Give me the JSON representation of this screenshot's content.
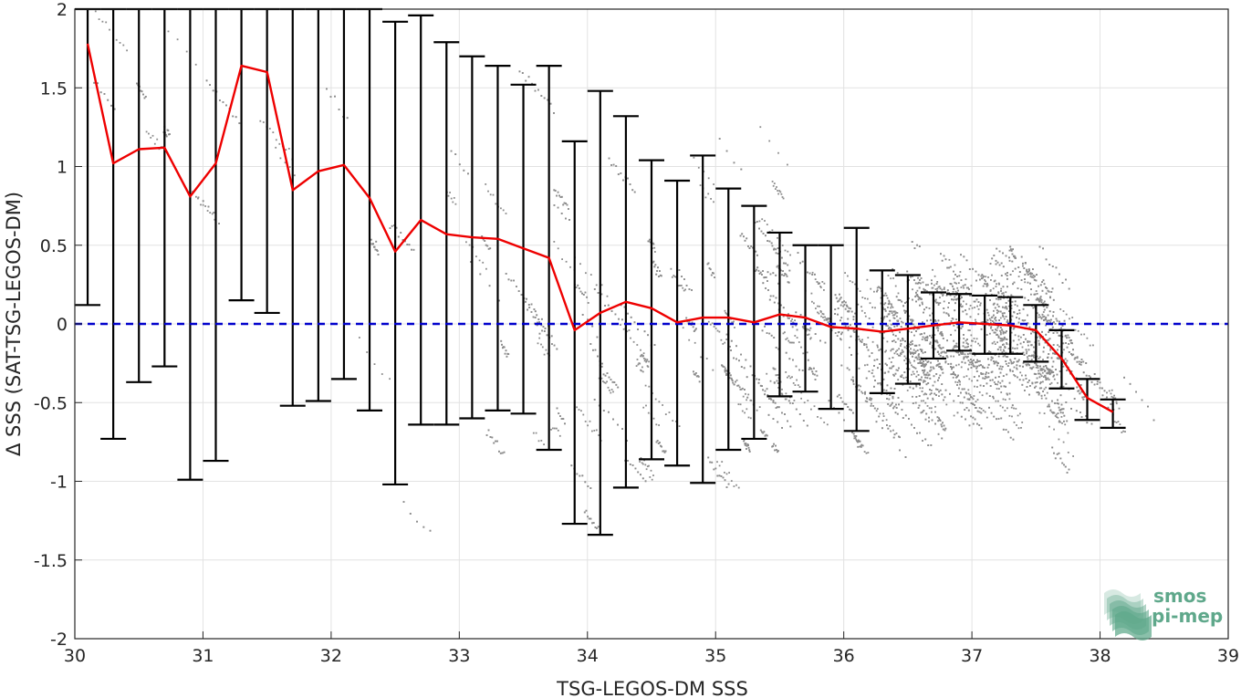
{
  "chart_data": {
    "type": "scatter",
    "title": "",
    "xlabel": "TSG-LEGOS-DM SSS",
    "ylabel": "Δ SSS (SAT-TSG-LEGOS-DM)",
    "xlim": [
      30,
      39
    ],
    "ylim": [
      -2,
      2
    ],
    "xticks": [
      30,
      31,
      32,
      33,
      34,
      35,
      36,
      37,
      38,
      39
    ],
    "yticks": [
      -2,
      -1.5,
      -1,
      -0.5,
      0,
      0.5,
      1,
      1.5,
      2
    ],
    "xtick_labels": [
      "30",
      "31",
      "32",
      "33",
      "34",
      "35",
      "36",
      "37",
      "38",
      "39"
    ],
    "ytick_labels": [
      "-2",
      "-1.5",
      "-1",
      "-0.5",
      "0",
      "0.5",
      "1",
      "1.5",
      "2"
    ],
    "grid": true,
    "series": [
      {
        "kind": "scatter",
        "color": "#8c8c8c",
        "description_note": "dense cloud of individual matchup points"
      },
      {
        "kind": "errorbar",
        "color": "#000000",
        "x": [
          30.1,
          30.3,
          30.5,
          30.7,
          30.9,
          31.1,
          31.3,
          31.5,
          31.7,
          31.9,
          32.1,
          32.3,
          32.5,
          32.7,
          32.9,
          33.1,
          33.3,
          33.5,
          33.7,
          33.9,
          34.1,
          34.3,
          34.5,
          34.7,
          34.9,
          35.1,
          35.3,
          35.5,
          35.7,
          35.9,
          36.1,
          36.3,
          36.5,
          36.7,
          36.9,
          37.1,
          37.3,
          37.5,
          37.7,
          37.9,
          38.1
        ],
        "lower": [
          0.12,
          -0.73,
          -0.37,
          -0.27,
          -0.99,
          -0.87,
          0.15,
          0.07,
          -0.52,
          -0.49,
          -0.35,
          -0.55,
          -1.02,
          -0.64,
          -0.64,
          -0.6,
          -0.55,
          -0.57,
          -0.8,
          -1.27,
          -1.34,
          -1.04,
          -0.86,
          -0.9,
          -1.01,
          -0.8,
          -0.73,
          -0.46,
          -0.43,
          -0.54,
          -0.68,
          -0.44,
          -0.38,
          -0.22,
          -0.17,
          -0.19,
          -0.19,
          -0.24,
          -0.41,
          -0.61,
          -0.66
        ],
        "upper": [
          2.0,
          2.0,
          2.0,
          2.0,
          2.0,
          2.0,
          2.0,
          2.0,
          2.0,
          2.0,
          2.0,
          2.0,
          1.92,
          1.96,
          1.79,
          1.7,
          1.64,
          1.52,
          1.64,
          1.16,
          1.48,
          1.32,
          1.04,
          0.91,
          1.07,
          0.86,
          0.75,
          0.58,
          0.5,
          0.5,
          0.61,
          0.34,
          0.31,
          0.2,
          0.19,
          0.18,
          0.17,
          0.12,
          -0.04,
          -0.35,
          -0.48
        ]
      },
      {
        "kind": "line",
        "color": "#ee0000",
        "x": [
          30.1,
          30.3,
          30.5,
          30.7,
          30.9,
          31.1,
          31.3,
          31.5,
          31.7,
          31.9,
          32.1,
          32.3,
          32.5,
          32.7,
          32.9,
          33.1,
          33.3,
          33.5,
          33.7,
          33.9,
          34.1,
          34.3,
          34.5,
          34.7,
          34.9,
          35.1,
          35.3,
          35.5,
          35.7,
          35.9,
          36.1,
          36.3,
          36.5,
          36.7,
          36.9,
          37.1,
          37.3,
          37.5,
          37.7,
          37.9,
          38.1
        ],
        "y": [
          1.78,
          1.02,
          1.11,
          1.12,
          0.81,
          1.02,
          1.64,
          1.6,
          0.85,
          0.97,
          1.01,
          0.8,
          0.46,
          0.66,
          0.57,
          0.55,
          0.54,
          0.48,
          0.42,
          -0.04,
          0.07,
          0.14,
          0.1,
          0.01,
          0.04,
          0.04,
          0.01,
          0.06,
          0.04,
          -0.02,
          -0.03,
          -0.05,
          -0.03,
          -0.01,
          0.01,
          0.0,
          -0.01,
          -0.04,
          -0.22,
          -0.47,
          -0.56
        ]
      },
      {
        "kind": "hline",
        "color": "#0000cc",
        "y": 0
      }
    ]
  },
  "logo": {
    "line1": "smos",
    "line2": "pi-mep",
    "color": "#5fa88b"
  }
}
